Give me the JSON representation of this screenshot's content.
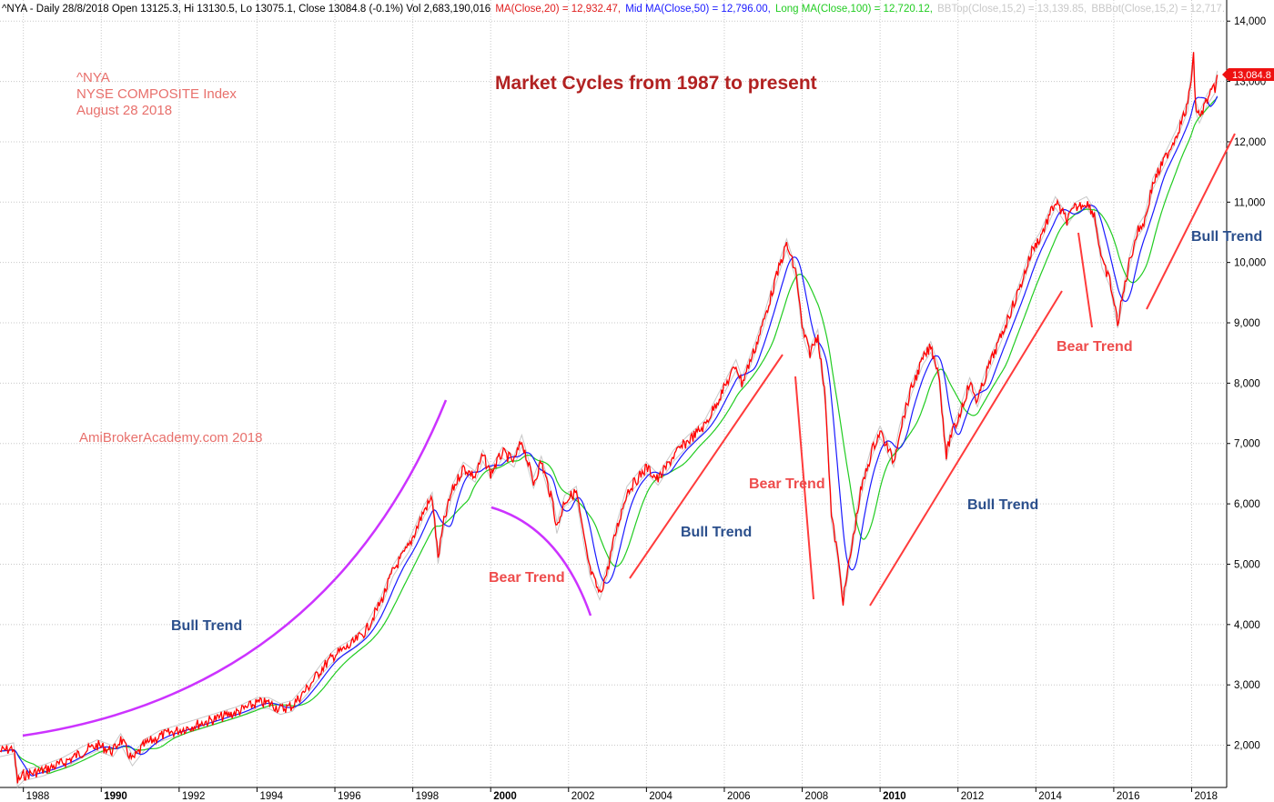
{
  "header": {
    "symbol_line": "^NYA - Daily 28/8/2018 Open 13125.3, Hi 13130.5, Lo 13075.1, Close 13084.8 (-0.1%) Vol 2,683,190,016",
    "ma20": "MA(Close,20) = 12,932.47,",
    "ma50": "Mid MA(Close,50) = 12,796.00,",
    "ma100": "Long MA(Close,100) = 12,720.12,",
    "bbtop": "BBTop(Close,15,2) = 13,139.85,",
    "bbbot": "BBBot(Close,15,2) = 12,717."
  },
  "info": {
    "ticker": "^NYA",
    "name": "NYSE COMPOSITE Index",
    "date": "August 28 2018",
    "watermark": "AmiBrokerAcademy.com  2018"
  },
  "last_price_label": "13,084.8",
  "colors": {
    "price": "#ff0000",
    "ma20": "#e02020",
    "ma50": "#1a1aff",
    "ma100": "#22cc22",
    "bb": "#c8c8c8",
    "bull_arc": "#cc33ff",
    "trend_line": "#ff3b3b",
    "title": "#b22222"
  },
  "chart_data": {
    "type": "line",
    "title": "Market Cycles  from 1987 to present",
    "xlabel": "",
    "ylabel": "",
    "ylim": [
      1300,
      14350
    ],
    "xlim": [
      1987.4,
      2018.9
    ],
    "yticks": [
      2000,
      3000,
      4000,
      5000,
      6000,
      7000,
      8000,
      9000,
      10000,
      11000,
      12000,
      13000,
      14000
    ],
    "ytick_labels": [
      "2,000",
      "3,000",
      "4,000",
      "5,000",
      "6,000",
      "7,000",
      "8,000",
      "9,000",
      "10,000",
      "11,000",
      "12,000",
      "13,000",
      "14,000"
    ],
    "xticks": [
      1988,
      1990,
      1992,
      1994,
      1996,
      1998,
      2000,
      2002,
      2004,
      2006,
      2008,
      2010,
      2012,
      2014,
      2016,
      2018
    ],
    "xtick_labels": [
      "1988",
      "1990",
      "1992",
      "1994",
      "1996",
      "1998",
      "2000",
      "2002",
      "2004",
      "2006",
      "2008",
      "2010",
      "2012",
      "2014",
      "2016",
      "2018"
    ],
    "major_xticks": [
      1990,
      2000,
      2010
    ],
    "grid": true,
    "series": [
      {
        "name": "^NYA",
        "x": [
          1987.4,
          1987.75,
          1987.85,
          1988.0,
          1988.5,
          1989.0,
          1989.5,
          1989.9,
          1990.3,
          1990.5,
          1990.8,
          1991.1,
          1991.5,
          1992.0,
          1992.5,
          1993.0,
          1993.5,
          1994.0,
          1994.3,
          1994.6,
          1994.9,
          1995.3,
          1995.7,
          1996.0,
          1996.4,
          1996.8,
          1997.2,
          1997.5,
          1997.9,
          1998.3,
          1998.5,
          1998.65,
          1998.8,
          1999.0,
          1999.3,
          1999.6,
          1999.8,
          2000.0,
          2000.3,
          2000.6,
          2000.8,
          2001.1,
          2001.3,
          2001.6,
          2001.7,
          2001.9,
          2002.2,
          2002.4,
          2002.55,
          2002.8,
          2003.0,
          2003.2,
          2003.5,
          2004.0,
          2004.3,
          2004.7,
          2005.0,
          2005.5,
          2005.9,
          2006.3,
          2006.45,
          2006.8,
          2007.0,
          2007.4,
          2007.6,
          2007.85,
          2008.0,
          2008.2,
          2008.4,
          2008.6,
          2008.75,
          2008.9,
          2009.05,
          2009.2,
          2009.5,
          2009.8,
          2010.0,
          2010.35,
          2010.5,
          2010.8,
          2011.1,
          2011.3,
          2011.5,
          2011.7,
          2011.8,
          2012.0,
          2012.3,
          2012.5,
          2012.8,
          2013.0,
          2013.3,
          2013.6,
          2013.9,
          2014.1,
          2014.3,
          2014.5,
          2014.8,
          2015.0,
          2015.3,
          2015.5,
          2015.7,
          2015.9,
          2016.1,
          2016.4,
          2016.6,
          2016.8,
          2017.0,
          2017.3,
          2017.6,
          2017.9,
          2018.05,
          2018.1,
          2018.2,
          2018.4,
          2018.6,
          2018.66
        ],
        "y": [
          1900,
          1950,
          1400,
          1500,
          1580,
          1700,
          1880,
          2000,
          1900,
          2100,
          1750,
          2000,
          2150,
          2250,
          2350,
          2450,
          2550,
          2700,
          2700,
          2600,
          2650,
          2950,
          3300,
          3500,
          3650,
          3900,
          4400,
          4900,
          5300,
          5900,
          6100,
          5100,
          5700,
          6200,
          6600,
          6450,
          6800,
          6500,
          6850,
          6700,
          7050,
          6350,
          6700,
          6000,
          5600,
          6050,
          6200,
          5400,
          4900,
          4500,
          4900,
          5500,
          6200,
          6600,
          6400,
          6800,
          7000,
          7300,
          7800,
          8300,
          8000,
          8600,
          9000,
          9900,
          10300,
          9800,
          8900,
          8500,
          8800,
          7700,
          5800,
          5200,
          4400,
          5000,
          6200,
          6900,
          7200,
          6700,
          7200,
          7900,
          8400,
          8600,
          8200,
          6800,
          7100,
          7400,
          8000,
          7700,
          8300,
          8600,
          9100,
          9600,
          10200,
          10400,
          10700,
          11000,
          10700,
          10900,
          11000,
          10800,
          10000,
          9700,
          9000,
          10000,
          10500,
          10700,
          11300,
          11700,
          12100,
          12600,
          13400,
          12600,
          12400,
          12700,
          12900,
          13085
        ]
      }
    ],
    "annotations": [
      {
        "text": "Bull Trend",
        "kind": "bull"
      },
      {
        "text": "Bear Trend",
        "kind": "bear"
      },
      {
        "text": "Bull Trend",
        "kind": "bull"
      },
      {
        "text": "Bear Trend",
        "kind": "bear"
      },
      {
        "text": "Bull Trend",
        "kind": "bull"
      },
      {
        "text": "Bear Trend",
        "kind": "bear"
      },
      {
        "text": "Bull Trend",
        "kind": "bull"
      }
    ]
  }
}
